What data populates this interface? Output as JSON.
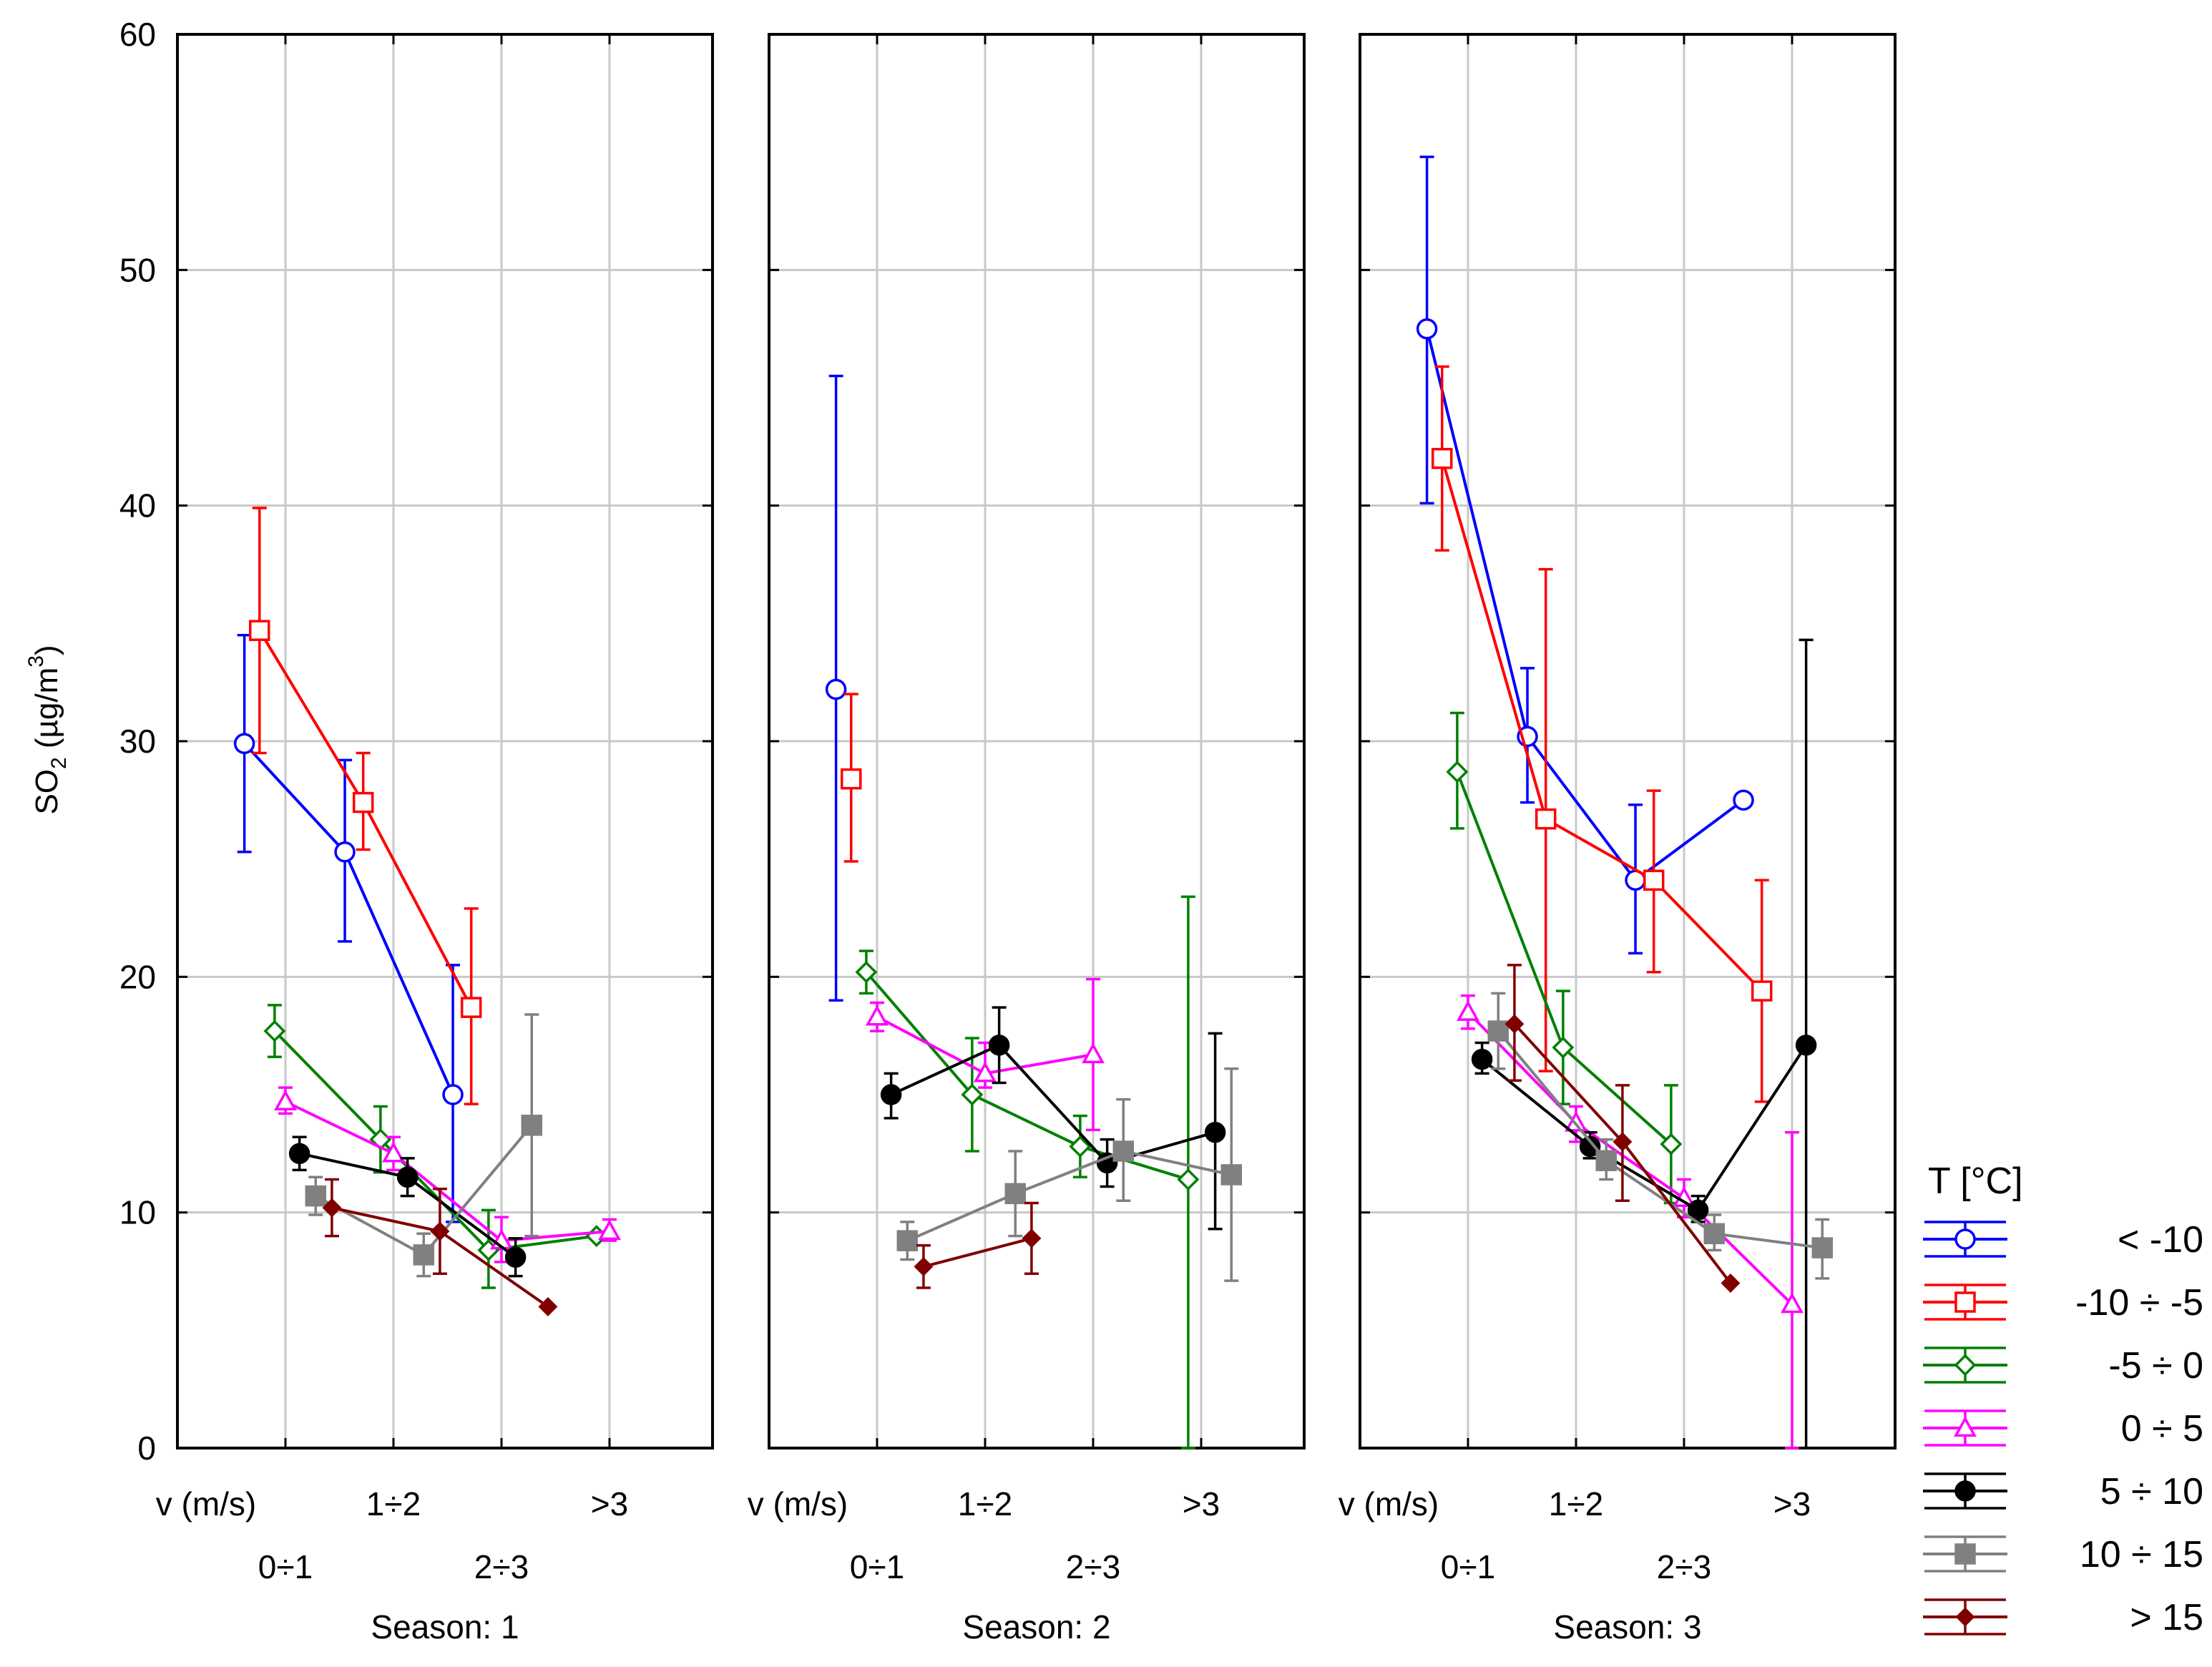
{
  "chart_data": {
    "type": "line",
    "title": "",
    "ylabel": "SO₂ (µg/m³)",
    "ylabel_parts": {
      "base": "SO",
      "sub": "2",
      "rest1": " (µg/m",
      "sup": "3",
      "rest2": ")"
    },
    "ylim": [
      0,
      60
    ],
    "yticks": [
      "0",
      "10",
      "20",
      "30",
      "40",
      "50",
      "60"
    ],
    "x_axis_label": "v (m/s)",
    "x_categories": [
      "0÷1",
      "1÷2",
      "2÷3",
      ">3"
    ],
    "panels": [
      {
        "label": "Season: 1"
      },
      {
        "label": "Season: 2"
      },
      {
        "label": "Season: 3"
      }
    ],
    "legend_title": "T [°C]",
    "series": [
      {
        "name": "< -10",
        "color": "#0000ff",
        "marker": "circle-open",
        "panels": [
          [
            {
              "x": 0.62,
              "y": 29.9,
              "lo": 25.3,
              "hi": 34.5
            },
            {
              "x": 1.55,
              "y": 25.3,
              "lo": 21.5,
              "hi": 29.2
            },
            {
              "x": 2.55,
              "y": 15.0,
              "lo": 9.6,
              "hi": 20.5
            }
          ],
          [
            {
              "x": 0.62,
              "y": 32.2,
              "lo": 19.0,
              "hi": 45.5
            }
          ],
          [
            {
              "x": 0.62,
              "y": 47.5,
              "lo": 40.1,
              "hi": 54.8
            },
            {
              "x": 1.55,
              "y": 30.2,
              "lo": 27.4,
              "hi": 33.1
            },
            {
              "x": 2.55,
              "y": 24.1,
              "lo": 21.0,
              "hi": 27.3
            },
            {
              "x": 3.55,
              "y": 27.5
            }
          ]
        ]
      },
      {
        "name": "-10 ÷ -5",
        "color": "#ff0000",
        "marker": "square-open",
        "panels": [
          [
            {
              "x": 0.76,
              "y": 34.7,
              "lo": 29.5,
              "hi": 39.9
            },
            {
              "x": 1.72,
              "y": 27.4,
              "lo": 25.4,
              "hi": 29.5
            },
            {
              "x": 2.72,
              "y": 18.7,
              "lo": 14.6,
              "hi": 22.9
            }
          ],
          [
            {
              "x": 0.76,
              "y": 28.4,
              "lo": 24.9,
              "hi": 32.0
            }
          ],
          [
            {
              "x": 0.76,
              "y": 42.0,
              "lo": 38.1,
              "hi": 45.9
            },
            {
              "x": 1.72,
              "y": 26.7,
              "lo": 16.0,
              "hi": 37.3
            },
            {
              "x": 2.72,
              "y": 24.1,
              "lo": 20.2,
              "hi": 27.9
            },
            {
              "x": 3.72,
              "y": 19.4,
              "lo": 14.7,
              "hi": 24.1
            }
          ]
        ]
      },
      {
        "name": "-5 ÷ 0",
        "color": "#008000",
        "marker": "diamond-open",
        "panels": [
          [
            {
              "x": 0.9,
              "y": 17.7,
              "lo": 16.6,
              "hi": 18.8
            },
            {
              "x": 1.88,
              "y": 13.1,
              "lo": 11.7,
              "hi": 14.5
            },
            {
              "x": 2.88,
              "y": 8.4,
              "lo": 6.8,
              "hi": 10.1
            },
            {
              "x": 3.88,
              "y": 9.0
            }
          ],
          [
            {
              "x": 0.9,
              "y": 20.2,
              "lo": 19.3,
              "hi": 21.1
            },
            {
              "x": 1.88,
              "y": 15.0,
              "lo": 12.6,
              "hi": 17.4
            },
            {
              "x": 2.88,
              "y": 12.8,
              "lo": 11.5,
              "hi": 14.1
            },
            {
              "x": 3.88,
              "y": 11.4,
              "lo": 0.0,
              "hi": 23.4
            }
          ],
          [
            {
              "x": 0.9,
              "y": 28.7,
              "lo": 26.3,
              "hi": 31.2
            },
            {
              "x": 1.88,
              "y": 17.0,
              "lo": 14.6,
              "hi": 19.4
            },
            {
              "x": 2.88,
              "y": 12.9,
              "lo": 10.4,
              "hi": 15.4
            }
          ]
        ]
      },
      {
        "name": "0 ÷ 5",
        "color": "#ff00ff",
        "marker": "triangle-open",
        "panels": [
          [
            {
              "x": 1.0,
              "y": 14.7,
              "lo": 14.2,
              "hi": 15.3
            },
            {
              "x": 2.0,
              "y": 12.5,
              "lo": 11.8,
              "hi": 13.2
            },
            {
              "x": 3.0,
              "y": 8.8,
              "lo": 7.9,
              "hi": 9.8
            },
            {
              "x": 4.0,
              "y": 9.2,
              "lo": 8.8,
              "hi": 9.7
            }
          ],
          [
            {
              "x": 1.0,
              "y": 18.3,
              "lo": 17.7,
              "hi": 18.9
            },
            {
              "x": 2.0,
              "y": 15.9,
              "lo": 15.3,
              "hi": 17.2
            },
            {
              "x": 3.0,
              "y": 16.7,
              "lo": 13.5,
              "hi": 19.9
            }
          ],
          [
            {
              "x": 1.0,
              "y": 18.5,
              "lo": 17.8,
              "hi": 19.2
            },
            {
              "x": 2.0,
              "y": 13.8,
              "lo": 13.0,
              "hi": 14.5
            },
            {
              "x": 3.0,
              "y": 10.6,
              "lo": 9.8,
              "hi": 11.4
            },
            {
              "x": 4.0,
              "y": 6.1,
              "lo": 0.0,
              "hi": 13.4
            }
          ]
        ]
      },
      {
        "name": "5 ÷ 10",
        "color": "#000000",
        "marker": "circle-filled",
        "panels": [
          [
            {
              "x": 1.13,
              "y": 12.5,
              "lo": 11.8,
              "hi": 13.2
            },
            {
              "x": 2.13,
              "y": 11.5,
              "lo": 10.7,
              "hi": 12.3
            },
            {
              "x": 3.13,
              "y": 8.1,
              "lo": 7.3,
              "hi": 8.9
            }
          ],
          [
            {
              "x": 1.13,
              "y": 15.0,
              "lo": 14.0,
              "hi": 15.9
            },
            {
              "x": 2.13,
              "y": 17.1,
              "lo": 15.5,
              "hi": 18.7
            },
            {
              "x": 3.13,
              "y": 12.1,
              "lo": 11.1,
              "hi": 13.1
            },
            {
              "x": 4.13,
              "y": 13.4,
              "lo": 9.3,
              "hi": 17.6
            }
          ],
          [
            {
              "x": 1.13,
              "y": 16.5,
              "lo": 15.9,
              "hi": 17.2
            },
            {
              "x": 2.13,
              "y": 12.8,
              "lo": 12.3,
              "hi": 13.4
            },
            {
              "x": 3.13,
              "y": 10.1,
              "lo": 9.6,
              "hi": 10.7
            },
            {
              "x": 4.13,
              "y": 17.1,
              "lo": 0.0,
              "hi": 34.3
            }
          ]
        ]
      },
      {
        "name": "10 ÷ 15",
        "color": "#808080",
        "marker": "square-filled",
        "panels": [
          [
            {
              "x": 1.28,
              "y": 10.7,
              "lo": 9.9,
              "hi": 11.5
            },
            {
              "x": 2.28,
              "y": 8.2,
              "lo": 7.3,
              "hi": 9.1
            },
            {
              "x": 3.28,
              "y": 13.7,
              "lo": 9.0,
              "hi": 18.4
            }
          ],
          [
            {
              "x": 1.28,
              "y": 8.8,
              "lo": 8.0,
              "hi": 9.6
            },
            {
              "x": 2.28,
              "y": 10.8,
              "lo": 9.0,
              "hi": 12.6
            },
            {
              "x": 3.28,
              "y": 12.6,
              "lo": 10.5,
              "hi": 14.8
            },
            {
              "x": 4.28,
              "y": 11.6,
              "lo": 7.1,
              "hi": 16.1
            }
          ],
          [
            {
              "x": 1.28,
              "y": 17.7,
              "lo": 16.1,
              "hi": 19.3
            },
            {
              "x": 2.28,
              "y": 12.2,
              "lo": 11.4,
              "hi": 13.1
            },
            {
              "x": 3.28,
              "y": 9.1,
              "lo": 8.4,
              "hi": 9.9
            },
            {
              "x": 4.28,
              "y": 8.5,
              "lo": 7.2,
              "hi": 9.7
            }
          ]
        ]
      },
      {
        "name": "> 15",
        "color": "#800000",
        "marker": "diamond-filled",
        "panels": [
          [
            {
              "x": 1.43,
              "y": 10.2,
              "lo": 9.0,
              "hi": 11.4
            },
            {
              "x": 2.43,
              "y": 9.2,
              "lo": 7.4,
              "hi": 11.0
            },
            {
              "x": 3.43,
              "y": 6.0
            }
          ],
          [
            {
              "x": 1.43,
              "y": 7.7,
              "lo": 6.8,
              "hi": 8.6
            },
            {
              "x": 2.43,
              "y": 8.9,
              "lo": 7.4,
              "hi": 10.4
            }
          ],
          [
            {
              "x": 1.43,
              "y": 18.0,
              "lo": 15.6,
              "hi": 20.5
            },
            {
              "x": 2.43,
              "y": 13.0,
              "lo": 10.5,
              "hi": 15.4
            },
            {
              "x": 3.43,
              "y": 7.0
            }
          ]
        ]
      }
    ]
  }
}
